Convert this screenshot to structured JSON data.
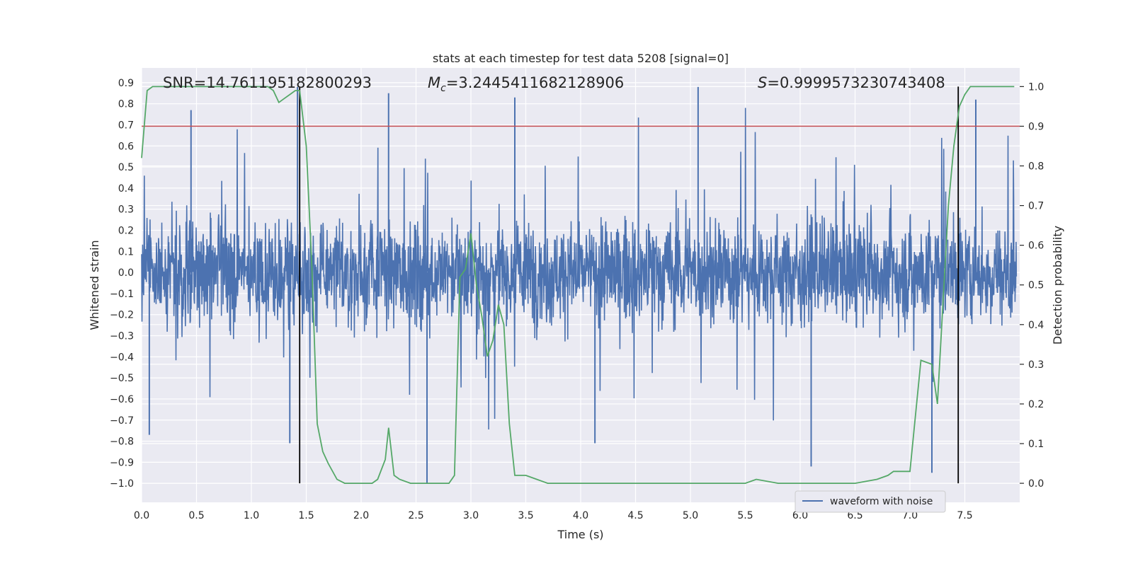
{
  "chart_data": {
    "type": "line",
    "title": "stats at each timestep for test data 5208 [signal=0]",
    "xlabel": "Time (s)",
    "ylabel": "Whitened strain",
    "ylabel_right": "Detection probability",
    "xlim": [
      0.0,
      8.0
    ],
    "ylim": [
      -1.09,
      0.97
    ],
    "ylim_right": [
      -0.048,
      1.047
    ],
    "x_ticks": [
      0.0,
      0.5,
      1.0,
      1.5,
      2.0,
      2.5,
      3.0,
      3.5,
      4.0,
      4.5,
      5.0,
      5.5,
      6.0,
      6.5,
      7.0,
      7.5
    ],
    "x_tick_labels": [
      "0.0",
      "0.5",
      "1.0",
      "1.5",
      "2.0",
      "2.5",
      "3.0",
      "3.5",
      "4.0",
      "4.5",
      "5.0",
      "5.5",
      "6.0",
      "6.5",
      "7.0",
      "7.5"
    ],
    "y_ticks": [
      0.9,
      0.8,
      0.7,
      0.6,
      0.5,
      0.4,
      0.3,
      0.2,
      0.1,
      0.0,
      -0.1,
      -0.2,
      -0.3,
      -0.4,
      -0.5,
      -0.6,
      -0.7,
      -0.8,
      -0.9,
      -1.0
    ],
    "y_tick_labels": [
      "0.9",
      "0.8",
      "0.7",
      "0.6",
      "0.5",
      "0.4",
      "0.3",
      "0.2",
      "0.1",
      "0.0",
      "−0.1",
      "−0.2",
      "−0.3",
      "−0.4",
      "−0.5",
      "−0.6",
      "−0.7",
      "−0.8",
      "−0.9",
      "−1.0"
    ],
    "y2_ticks": [
      1.0,
      0.9,
      0.8,
      0.7,
      0.6,
      0.5,
      0.4,
      0.3,
      0.2,
      0.1,
      0.0
    ],
    "y2_tick_labels": [
      "1.0",
      "0.9",
      "0.8",
      "0.7",
      "0.6",
      "0.5",
      "0.4",
      "0.3",
      "0.2",
      "0.1",
      "0.0"
    ],
    "annotations": [
      {
        "text": "SNR=14.761195182800293",
        "x": 0.2
      },
      {
        "text": "=3.2445411682128906",
        "symbol": "M",
        "subscript": "c",
        "x": 2.6
      },
      {
        "text": "=0.9999573230743408",
        "symbol": "S",
        "x": 5.6
      }
    ],
    "threshold": {
      "axis": "right",
      "value": 0.9,
      "color": "#c44e52"
    },
    "vlines": [
      1.44,
      7.44
    ],
    "legend": {
      "position": "lower-right",
      "entries": [
        "waveform with noise"
      ]
    },
    "colors": {
      "waveform": "#4c72b0",
      "probability": "#55a868",
      "threshold": "#c44e52",
      "vline": "#000000",
      "background": "#eaeaf2",
      "grid": "#ffffff"
    },
    "series": [
      {
        "name": "waveform with noise",
        "type": "noise-band",
        "values_note": "dense noise trace, ~8000 samples; envelope roughly -0.5..0.5 with spikes",
        "notable_peaks": [
          {
            "x": 0.45,
            "y": 0.77
          },
          {
            "x": 1.42,
            "y": 0.88
          },
          {
            "x": 2.25,
            "y": 0.85
          },
          {
            "x": 3.4,
            "y": 0.83
          },
          {
            "x": 5.07,
            "y": 0.88
          },
          {
            "x": 7.6,
            "y": 0.82
          }
        ],
        "notable_troughs": [
          {
            "x": 0.07,
            "y": -0.77
          },
          {
            "x": 1.35,
            "y": -0.81
          },
          {
            "x": 2.6,
            "y": -1.0
          },
          {
            "x": 4.13,
            "y": -0.81
          },
          {
            "x": 6.1,
            "y": -0.92
          },
          {
            "x": 7.2,
            "y": -0.95
          }
        ]
      },
      {
        "name": "detection probability",
        "axis": "right",
        "x": [
          0.0,
          0.05,
          0.1,
          0.2,
          0.3,
          0.5,
          0.8,
          1.0,
          1.15,
          1.2,
          1.25,
          1.3,
          1.35,
          1.4,
          1.44,
          1.5,
          1.55,
          1.6,
          1.65,
          1.7,
          1.78,
          1.85,
          2.0,
          2.1,
          2.15,
          2.22,
          2.25,
          2.3,
          2.35,
          2.45,
          2.6,
          2.7,
          2.8,
          2.85,
          2.9,
          2.95,
          3.0,
          3.05,
          3.1,
          3.15,
          3.2,
          3.25,
          3.3,
          3.35,
          3.4,
          3.5,
          3.6,
          3.7,
          3.8,
          4.0,
          4.5,
          5.0,
          5.5,
          5.6,
          5.8,
          6.0,
          6.5,
          6.7,
          6.8,
          6.85,
          6.9,
          7.0,
          7.1,
          7.2,
          7.25,
          7.3,
          7.35,
          7.4,
          7.45,
          7.5,
          7.55,
          7.6,
          7.7,
          7.8,
          7.95
        ],
        "values": [
          0.82,
          0.99,
          1.0,
          1.0,
          1.0,
          1.0,
          1.0,
          1.0,
          1.0,
          0.99,
          0.96,
          0.97,
          0.98,
          0.99,
          0.99,
          0.85,
          0.55,
          0.15,
          0.08,
          0.05,
          0.01,
          0.0,
          0.0,
          0.0,
          0.01,
          0.06,
          0.14,
          0.02,
          0.01,
          0.0,
          0.0,
          0.0,
          0.0,
          0.02,
          0.52,
          0.54,
          0.63,
          0.5,
          0.42,
          0.32,
          0.36,
          0.45,
          0.4,
          0.15,
          0.02,
          0.02,
          0.01,
          0.0,
          0.0,
          0.0,
          0.0,
          0.0,
          0.0,
          0.01,
          0.0,
          0.0,
          0.0,
          0.01,
          0.02,
          0.03,
          0.03,
          0.03,
          0.31,
          0.3,
          0.2,
          0.45,
          0.7,
          0.85,
          0.95,
          0.98,
          1.0,
          1.0,
          1.0,
          1.0,
          1.0
        ]
      }
    ]
  }
}
